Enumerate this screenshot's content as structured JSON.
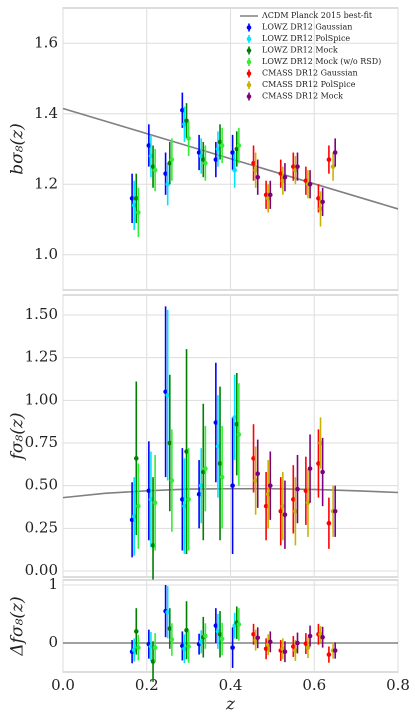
{
  "chart_data": [
    {
      "type": "errorbar",
      "ylabel": "bσ₈(z)",
      "ylim": [
        0.9,
        1.7
      ],
      "yticks": [
        {
          "value": 1.0,
          "label": "1.0"
        },
        1.2,
        1.4,
        1.6
      ],
      "grid": true,
      "legend": "upper right",
      "line": {
        "name": "ΛCDM Planck 2015 best-fit",
        "color": "#808080",
        "x": [
          0.0,
          0.8
        ],
        "values": [
          1.415,
          1.13
        ]
      },
      "series": [
        {
          "name": "LOWZ DR12 Gaussian",
          "color": "#0000ff",
          "x": [
            0.165,
            0.205,
            0.245,
            0.285,
            0.325,
            0.365,
            0.405
          ],
          "values": [
            1.16,
            1.31,
            1.23,
            1.41,
            1.29,
            1.27,
            1.29
          ],
          "errors": [
            0.07,
            0.06,
            0.06,
            0.05,
            0.05,
            0.05,
            0.05
          ]
        },
        {
          "name": "LOWZ DR12 PolSpice",
          "color": "#00e5ff",
          "x": [
            0.17,
            0.21,
            0.25,
            0.29,
            0.33,
            0.37,
            0.41
          ],
          "values": [
            1.14,
            1.28,
            1.2,
            1.37,
            1.28,
            1.3,
            1.24
          ],
          "errors": [
            0.07,
            0.06,
            0.06,
            0.05,
            0.05,
            0.05,
            0.05
          ]
        },
        {
          "name": "LOWZ DR12 Mock",
          "color": "#007f00",
          "x": [
            0.175,
            0.215,
            0.255,
            0.295,
            0.335,
            0.375,
            0.415
          ],
          "values": [
            1.16,
            1.25,
            1.26,
            1.38,
            1.27,
            1.32,
            1.3
          ],
          "errors": [
            0.07,
            0.06,
            0.06,
            0.05,
            0.05,
            0.05,
            0.05
          ]
        },
        {
          "name": "LOWZ DR12 Mock (w/o RSD)",
          "color": "#33ee33",
          "x": [
            0.18,
            0.22,
            0.26,
            0.3,
            0.34,
            0.38,
            0.42
          ],
          "values": [
            1.12,
            1.24,
            1.27,
            1.33,
            1.26,
            1.31,
            1.31
          ],
          "errors": [
            0.07,
            0.06,
            0.06,
            0.05,
            0.05,
            0.05,
            0.05
          ]
        },
        {
          "name": "CMASS DR12 Gaussian",
          "color": "#ff0000",
          "x": [
            0.455,
            0.485,
            0.52,
            0.55,
            0.58,
            0.61,
            0.635
          ],
          "values": [
            1.26,
            1.17,
            1.23,
            1.25,
            1.21,
            1.16,
            1.27
          ],
          "errors": [
            0.05,
            0.04,
            0.04,
            0.04,
            0.04,
            0.04,
            0.04
          ]
        },
        {
          "name": "CMASS DR12 PolSpice",
          "color": "#c8b400",
          "x": [
            0.46,
            0.49,
            0.525,
            0.555,
            0.585,
            0.615,
            0.645
          ],
          "values": [
            1.24,
            1.16,
            1.21,
            1.24,
            1.2,
            1.13,
            1.25
          ],
          "errors": [
            0.05,
            0.04,
            0.04,
            0.04,
            0.04,
            0.05,
            0.04
          ]
        },
        {
          "name": "CMASS DR12 Mock",
          "color": "#7f007f",
          "x": [
            0.465,
            0.495,
            0.53,
            0.56,
            0.59,
            0.62,
            0.65
          ],
          "values": [
            1.22,
            1.17,
            1.22,
            1.25,
            1.2,
            1.15,
            1.29
          ],
          "errors": [
            0.05,
            0.04,
            0.04,
            0.04,
            0.04,
            0.04,
            0.04
          ]
        }
      ]
    },
    {
      "type": "errorbar",
      "ylabel": "fσ₈(z)",
      "ylim": [
        -0.035,
        1.617
      ],
      "yticks": [
        {
          "value": 0.0,
          "label": "0.00"
        },
        0.25,
        {
          "value": 0.5,
          "label": "0.50"
        },
        0.75,
        {
          "value": 1.0,
          "label": "1.00"
        },
        1.25,
        {
          "value": 1.5,
          "label": "1.50"
        }
      ],
      "grid": true,
      "line": {
        "color": "#808080",
        "x": [
          0.0,
          0.1,
          0.2,
          0.3,
          0.4,
          0.5,
          0.6,
          0.7,
          0.8
        ],
        "values": [
          0.43,
          0.455,
          0.47,
          0.48,
          0.482,
          0.482,
          0.478,
          0.47,
          0.46
        ]
      },
      "series": [
        {
          "color": "#0000ff",
          "x": [
            0.165,
            0.205,
            0.245,
            0.285,
            0.325,
            0.365,
            0.405
          ],
          "values": [
            0.3,
            0.47,
            1.05,
            0.42,
            0.45,
            0.87,
            0.5
          ],
          "errors": [
            0.22,
            0.29,
            0.5,
            0.3,
            0.2,
            0.35,
            0.4
          ]
        },
        {
          "color": "#00e5ff",
          "x": [
            0.17,
            0.21,
            0.25,
            0.29,
            0.33,
            0.37,
            0.41
          ],
          "values": [
            0.32,
            0.42,
            1.03,
            0.38,
            0.5,
            0.73,
            0.9
          ],
          "errors": [
            0.23,
            0.28,
            0.5,
            0.28,
            0.22,
            0.3,
            0.25
          ]
        },
        {
          "color": "#007f00",
          "x": [
            0.175,
            0.215,
            0.255,
            0.295,
            0.335,
            0.375,
            0.415
          ],
          "values": [
            0.66,
            0.15,
            0.75,
            0.7,
            0.58,
            0.63,
            0.86
          ],
          "errors": [
            0.45,
            0.4,
            0.4,
            0.6,
            0.4,
            0.45,
            0.3
          ]
        },
        {
          "color": "#33ee33",
          "x": [
            0.18,
            0.22,
            0.26,
            0.3,
            0.34,
            0.38,
            0.42
          ],
          "values": [
            0.38,
            0.4,
            0.53,
            0.42,
            0.6,
            0.55,
            0.8
          ],
          "errors": [
            0.25,
            0.28,
            0.3,
            0.3,
            0.25,
            0.3,
            0.3
          ]
        },
        {
          "color": "#ff0000",
          "x": [
            0.455,
            0.485,
            0.52,
            0.55,
            0.58,
            0.61,
            0.635
          ],
          "values": [
            0.66,
            0.38,
            0.35,
            0.42,
            0.47,
            0.63,
            0.28
          ],
          "errors": [
            0.2,
            0.2,
            0.2,
            0.2,
            0.2,
            0.2,
            0.15
          ]
        },
        {
          "color": "#c8b400",
          "x": [
            0.46,
            0.49,
            0.525,
            0.555,
            0.585,
            0.615,
            0.645
          ],
          "values": [
            0.53,
            0.45,
            0.38,
            0.35,
            0.4,
            0.75,
            0.35
          ],
          "errors": [
            0.2,
            0.2,
            0.2,
            0.2,
            0.2,
            0.15,
            0.15
          ]
        },
        {
          "color": "#7f007f",
          "x": [
            0.465,
            0.495,
            0.53,
            0.56,
            0.59,
            0.62,
            0.65
          ],
          "values": [
            0.57,
            0.5,
            0.33,
            0.48,
            0.6,
            0.58,
            0.35
          ],
          "errors": [
            0.2,
            0.2,
            0.2,
            0.2,
            0.2,
            0.2,
            0.15
          ]
        }
      ]
    },
    {
      "type": "errorbar",
      "ylabel": "Δfσ₈(z)",
      "xlabel": "z",
      "ylim": [
        -0.5,
        1.086
      ],
      "yticks": [
        0,
        1
      ],
      "xlim": [
        0.0,
        0.8
      ],
      "xticks": [
        {
          "value": 0.0,
          "label": "0.0"
        },
        0.2,
        0.4,
        0.6,
        0.8
      ],
      "grid": true,
      "line": {
        "color": "#808080",
        "x": [
          0.0,
          0.8
        ],
        "values": [
          0,
          0
        ]
      },
      "series": [
        {
          "color": "#0000ff",
          "x": [
            0.165,
            0.205,
            0.245,
            0.285,
            0.325,
            0.365,
            0.405
          ],
          "values": [
            -0.15,
            -0.02,
            0.55,
            -0.05,
            -0.02,
            0.3,
            -0.08
          ],
          "errors": [
            0.2,
            0.25,
            0.45,
            0.25,
            0.18,
            0.3,
            0.35
          ]
        },
        {
          "color": "#00e5ff",
          "x": [
            0.17,
            0.21,
            0.25,
            0.29,
            0.33,
            0.37,
            0.41
          ],
          "values": [
            -0.12,
            -0.06,
            0.53,
            -0.1,
            0.02,
            0.2,
            0.3
          ],
          "errors": [
            0.2,
            0.25,
            0.45,
            0.25,
            0.2,
            0.3,
            0.22
          ]
        },
        {
          "color": "#007f00",
          "x": [
            0.175,
            0.215,
            0.255,
            0.295,
            0.335,
            0.375,
            0.415
          ],
          "values": [
            0.2,
            -0.32,
            0.25,
            0.22,
            0.1,
            0.15,
            0.35
          ],
          "errors": [
            0.4,
            0.35,
            0.35,
            0.5,
            0.35,
            0.4,
            0.28
          ]
        },
        {
          "color": "#33ee33",
          "x": [
            0.18,
            0.22,
            0.26,
            0.3,
            0.34,
            0.38,
            0.42
          ],
          "values": [
            -0.08,
            -0.08,
            0.06,
            -0.06,
            0.12,
            0.07,
            0.32
          ],
          "errors": [
            0.22,
            0.25,
            0.28,
            0.28,
            0.22,
            0.28,
            0.28
          ]
        },
        {
          "color": "#ff0000",
          "x": [
            0.455,
            0.485,
            0.52,
            0.55,
            0.58,
            0.61,
            0.635
          ],
          "values": [
            0.15,
            -0.1,
            -0.13,
            -0.06,
            -0.01,
            0.15,
            -0.2
          ],
          "errors": [
            0.18,
            0.18,
            0.18,
            0.18,
            0.18,
            0.18,
            0.14
          ]
        },
        {
          "color": "#c8b400",
          "x": [
            0.46,
            0.49,
            0.525,
            0.555,
            0.585,
            0.615,
            0.645
          ],
          "values": [
            0.05,
            -0.03,
            -0.1,
            -0.13,
            -0.08,
            0.15,
            -0.13
          ],
          "errors": [
            0.18,
            0.18,
            0.18,
            0.18,
            0.18,
            0.14,
            0.14
          ]
        },
        {
          "color": "#7f007f",
          "x": [
            0.465,
            0.495,
            0.53,
            0.56,
            0.59,
            0.62,
            0.65
          ],
          "values": [
            0.09,
            0.02,
            -0.15,
            0.0,
            0.12,
            0.1,
            -0.13
          ],
          "errors": [
            0.18,
            0.18,
            0.18,
            0.18,
            0.18,
            0.18,
            0.14
          ]
        }
      ]
    }
  ]
}
